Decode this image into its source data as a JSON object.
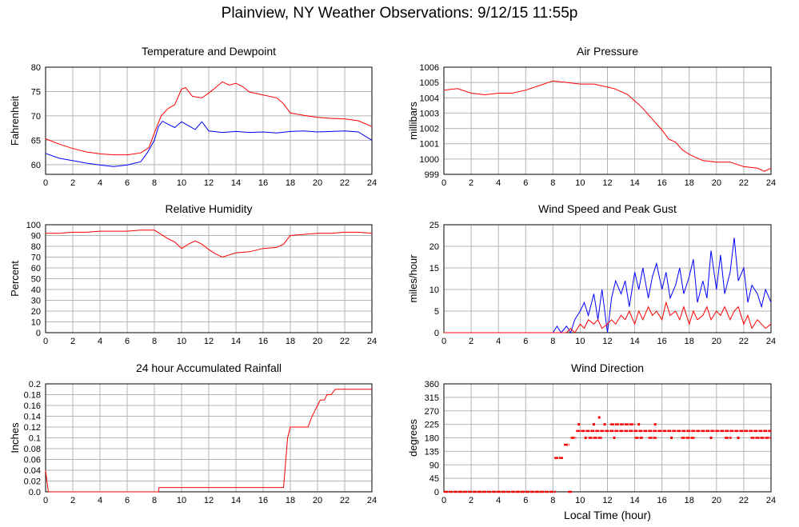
{
  "title": "Plainview, NY Weather Observations: 9/12/15 11:55p",
  "chart_data": [
    {
      "type": "line",
      "title": "Temperature and Dewpoint",
      "ylabel": "Fahrenheit",
      "xlabel": "",
      "xlim": [
        0,
        24
      ],
      "ylim": [
        58,
        80
      ],
      "xticks": [
        0,
        2,
        4,
        6,
        8,
        10,
        12,
        14,
        16,
        18,
        20,
        22,
        24
      ],
      "yticks": [
        60,
        65,
        70,
        75,
        80
      ],
      "grid": true,
      "series": [
        {
          "color": "#ff0000",
          "x": [
            0,
            1,
            2,
            3,
            4,
            5,
            6,
            7,
            7.6,
            8,
            8.5,
            9,
            9.5,
            10,
            10.3,
            10.8,
            11.5,
            12,
            12.5,
            13,
            13.5,
            14,
            14.5,
            15,
            16,
            17,
            17.5,
            18,
            19,
            20,
            21,
            22,
            23,
            24
          ],
          "values": [
            65.3,
            64.2,
            63.3,
            62.6,
            62.2,
            62.0,
            62.0,
            62.4,
            63.5,
            66.5,
            70.0,
            71.5,
            72.3,
            75.5,
            75.8,
            74.0,
            73.7,
            74.7,
            75.8,
            77.0,
            76.3,
            76.7,
            76.0,
            74.9,
            74.3,
            73.7,
            72.5,
            70.6,
            70.1,
            69.7,
            69.5,
            69.4,
            69.0,
            67.8
          ]
        },
        {
          "color": "#0000ff",
          "x": [
            0,
            1,
            2,
            3,
            4,
            5,
            6,
            7,
            7.5,
            8,
            8.3,
            8.6,
            9,
            9.5,
            10,
            10.5,
            11,
            11.5,
            12,
            13,
            14,
            15,
            16,
            17,
            18,
            19,
            20,
            21,
            22,
            23,
            24
          ],
          "values": [
            62.3,
            61.3,
            60.8,
            60.3,
            59.9,
            59.6,
            59.9,
            60.6,
            62.5,
            65.0,
            67.8,
            68.9,
            68.3,
            67.6,
            68.8,
            68.0,
            67.2,
            68.8,
            66.9,
            66.6,
            66.8,
            66.6,
            66.7,
            66.5,
            66.8,
            66.9,
            66.7,
            66.8,
            66.9,
            66.7,
            65.0
          ]
        }
      ]
    },
    {
      "type": "line",
      "title": "Air Pressure",
      "ylabel": "millibars",
      "xlabel": "",
      "xlim": [
        0,
        24
      ],
      "ylim": [
        999,
        1006
      ],
      "xticks": [
        0,
        2,
        4,
        6,
        8,
        10,
        12,
        14,
        16,
        18,
        20,
        22,
        24
      ],
      "yticks": [
        999,
        1000,
        1001,
        1002,
        1003,
        1004,
        1005,
        1006
      ],
      "grid": true,
      "series": [
        {
          "color": "#ff0000",
          "x": [
            0,
            1,
            2,
            3,
            4,
            5,
            6,
            7,
            8,
            9,
            10,
            11,
            12,
            12.5,
            13,
            13.5,
            14,
            14.5,
            15,
            15.5,
            16,
            16.5,
            17,
            17.5,
            18,
            18.5,
            19,
            20,
            21,
            22,
            23,
            23.5,
            24
          ],
          "values": [
            1004.5,
            1004.6,
            1004.3,
            1004.2,
            1004.3,
            1004.3,
            1004.5,
            1004.8,
            1005.1,
            1005.0,
            1004.9,
            1004.9,
            1004.7,
            1004.6,
            1004.4,
            1004.2,
            1003.8,
            1003.4,
            1002.9,
            1002.4,
            1001.9,
            1001.3,
            1001.1,
            1000.6,
            1000.3,
            1000.1,
            999.9,
            999.8,
            999.8,
            999.5,
            999.4,
            999.2,
            999.4
          ]
        }
      ]
    },
    {
      "type": "line",
      "title": "Relative Humidity",
      "ylabel": "Percent",
      "xlabel": "",
      "xlim": [
        0,
        24
      ],
      "ylim": [
        0,
        100
      ],
      "xticks": [
        0,
        2,
        4,
        6,
        8,
        10,
        12,
        14,
        16,
        18,
        20,
        22,
        24
      ],
      "yticks": [
        0,
        10,
        20,
        30,
        40,
        50,
        60,
        70,
        80,
        90,
        100
      ],
      "grid": true,
      "series": [
        {
          "color": "#ff0000",
          "x": [
            0,
            1,
            2,
            3,
            4,
            5,
            6,
            7,
            8,
            8.5,
            9,
            9.5,
            10,
            10.5,
            11,
            11.5,
            12,
            12.5,
            13,
            13.5,
            14,
            15,
            16,
            17,
            17.5,
            18,
            19,
            20,
            21,
            22,
            23,
            24
          ],
          "values": [
            92,
            92,
            93,
            93,
            94,
            94,
            94,
            95,
            95,
            91,
            87,
            84,
            78,
            82,
            85,
            82,
            77,
            73,
            70,
            72,
            74,
            75,
            78,
            79,
            82,
            90,
            91,
            92,
            92,
            93,
            93,
            92
          ]
        }
      ]
    },
    {
      "type": "line",
      "title": "Wind Speed and Peak Gust",
      "ylabel": "miles/hour",
      "xlabel": "",
      "xlim": [
        0,
        24
      ],
      "ylim": [
        0,
        25
      ],
      "xticks": [
        0,
        2,
        4,
        6,
        8,
        10,
        12,
        14,
        16,
        18,
        20,
        22,
        24
      ],
      "yticks": [
        0,
        5,
        10,
        15,
        20,
        25
      ],
      "grid": true,
      "series": [
        {
          "color": "#0000ff",
          "x": [
            0,
            8,
            8.3,
            8.6,
            9,
            9.3,
            9.6,
            10,
            10.3,
            10.6,
            11,
            11.3,
            11.6,
            12,
            12.3,
            12.6,
            13,
            13.3,
            13.6,
            14,
            14.3,
            14.6,
            15,
            15.3,
            15.6,
            16,
            16.3,
            16.6,
            17,
            17.3,
            17.6,
            18,
            18.3,
            18.6,
            19,
            19.3,
            19.6,
            20,
            20.3,
            20.6,
            21,
            21.3,
            21.6,
            22,
            22.3,
            22.6,
            23,
            23.3,
            23.6,
            24
          ],
          "values": [
            0,
            0,
            1.5,
            0,
            1.5,
            0,
            3,
            5,
            7,
            4,
            9,
            3,
            10,
            0,
            8,
            12,
            9,
            12,
            6,
            14,
            10,
            15,
            8,
            13,
            16,
            10,
            14,
            8,
            11,
            15,
            9,
            13,
            17,
            7,
            12,
            8,
            19,
            10,
            18,
            9,
            14,
            22,
            12,
            15,
            7,
            11,
            9,
            6,
            10,
            7
          ]
        },
        {
          "color": "#ff0000",
          "x": [
            0,
            9,
            9.3,
            9.6,
            10,
            10.3,
            10.6,
            11,
            11.3,
            11.6,
            12,
            12.3,
            12.6,
            13,
            13.3,
            13.6,
            14,
            14.3,
            14.6,
            15,
            15.3,
            15.6,
            16,
            16.3,
            16.6,
            17,
            17.3,
            17.6,
            18,
            18.3,
            18.6,
            19,
            19.3,
            19.6,
            20,
            20.3,
            20.6,
            21,
            21.3,
            21.6,
            22,
            22.3,
            22.6,
            23,
            23.3,
            23.6,
            24
          ],
          "values": [
            0,
            0,
            1,
            0,
            2,
            1,
            3,
            2,
            3,
            1,
            2,
            3,
            2,
            4,
            3,
            5,
            2,
            5,
            3,
            6,
            4,
            5,
            3,
            7,
            4,
            5,
            3,
            6,
            2,
            5,
            3,
            4,
            6,
            3,
            5,
            4,
            6,
            3,
            5,
            6,
            2,
            4,
            1,
            3,
            2,
            1,
            2
          ]
        }
      ]
    },
    {
      "type": "line",
      "title": "24 hour Accumulated Rainfall",
      "ylabel": "Inches",
      "xlabel": "",
      "xlim": [
        0,
        24
      ],
      "ylim": [
        0,
        0.2
      ],
      "xticks": [
        0,
        2,
        4,
        6,
        8,
        10,
        12,
        14,
        16,
        18,
        20,
        22,
        24
      ],
      "yticks": [
        0,
        0.02,
        0.04,
        0.06,
        0.08,
        0.1,
        0.12,
        0.14,
        0.16,
        0.18,
        0.2
      ],
      "ytick_labels": [
        "0.0",
        "0.02",
        "0.04",
        "0.06",
        "0.08",
        "0.1",
        "0.12",
        "0.14",
        "0.16",
        "0.18",
        "0.2"
      ],
      "grid": true,
      "series": [
        {
          "color": "#ff0000",
          "x": [
            0,
            0.1,
            0.2,
            8.3,
            8.35,
            17.5,
            17.8,
            18.0,
            19.3,
            19.6,
            19.8,
            20.0,
            20.2,
            20.5,
            20.7,
            21.0,
            21.3,
            21.5,
            24
          ],
          "values": [
            0.04,
            0.02,
            0,
            0,
            0.008,
            0.008,
            0.1,
            0.12,
            0.12,
            0.14,
            0.15,
            0.16,
            0.17,
            0.17,
            0.18,
            0.18,
            0.19,
            0.19,
            0.19
          ]
        }
      ]
    },
    {
      "type": "scatter",
      "title": "Wind Direction",
      "ylabel": "degrees",
      "xlabel": "Local Time (hour)",
      "xlim": [
        0,
        24
      ],
      "ylim": [
        0,
        360
      ],
      "xticks": [
        0,
        2,
        4,
        6,
        8,
        10,
        12,
        14,
        16,
        18,
        20,
        22,
        24
      ],
      "yticks": [
        0,
        45,
        90,
        135,
        180,
        225,
        270,
        315,
        360
      ],
      "grid": true,
      "series": [
        {
          "color": "#ff0000",
          "segments": [
            {
              "x": [
                0,
                8.2
              ],
              "y": 0
            },
            {
              "x": [
                9.1,
                9.4
              ],
              "y": 0
            },
            {
              "x": [
                8.1,
                8.8
              ],
              "y": 113
            },
            {
              "x": [
                8.8,
                9.2
              ],
              "y": 157
            },
            {
              "x": [
                9.3,
                9.7
              ],
              "y": 180
            },
            {
              "x": [
                9.7,
                24
              ],
              "y": 203
            },
            {
              "x": [
                10.6,
                11.6
              ],
              "y": 180
            },
            {
              "x": [
                12.2,
                14.0
              ],
              "y": 225
            },
            {
              "x": [
                14.0,
                14.6
              ],
              "y": 180
            },
            {
              "x": [
                15.0,
                15.6
              ],
              "y": 180
            },
            {
              "x": [
                17.4,
                18.4
              ],
              "y": 180
            },
            {
              "x": [
                20.6,
                21.1
              ],
              "y": 180
            },
            {
              "x": [
                22.5,
                24
              ],
              "y": 180
            }
          ],
          "points": [
            {
              "x": 9.9,
              "y": 225
            },
            {
              "x": 10.4,
              "y": 180
            },
            {
              "x": 11.0,
              "y": 225
            },
            {
              "x": 11.4,
              "y": 248
            },
            {
              "x": 11.8,
              "y": 225
            },
            {
              "x": 12.5,
              "y": 180
            },
            {
              "x": 14.3,
              "y": 225
            },
            {
              "x": 15.5,
              "y": 225
            },
            {
              "x": 16.7,
              "y": 180
            },
            {
              "x": 19.6,
              "y": 180
            },
            {
              "x": 21.6,
              "y": 180
            }
          ]
        }
      ]
    }
  ]
}
